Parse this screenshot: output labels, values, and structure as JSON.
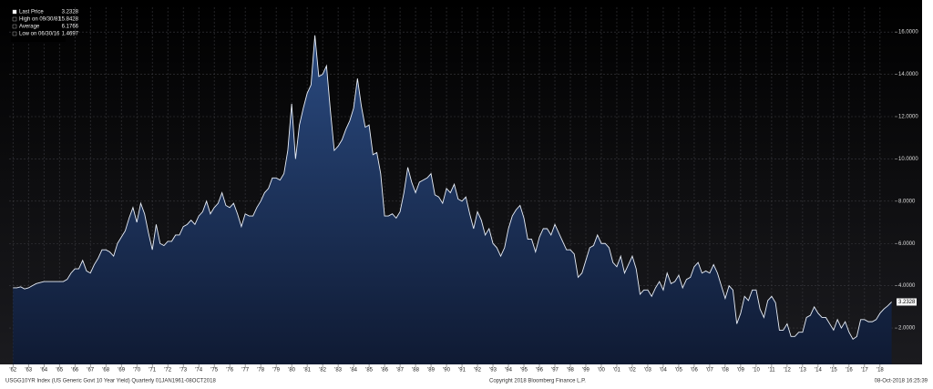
{
  "chart_data": {
    "type": "area",
    "legend": [
      {
        "label": "Last Price",
        "value": "3.2328"
      },
      {
        "label": "High on 09/30/81",
        "value": "15.8428"
      },
      {
        "label": "Average",
        "value": "6.1766"
      },
      {
        "label": "Low on 06/30/16",
        "value": "1.4697"
      }
    ],
    "footer_left": "USGG10YR Index (US Generic Govt 10 Year Yield) Quarterly 01JAN1961-08OCT2018",
    "footer_center": "Copyright 2018 Bloomberg Finance L.P.",
    "footer_right": "08-Oct-2018 16:25:39",
    "color": "#1c3563",
    "line_color": "#e8eef8",
    "grid": true,
    "xlim": [
      1961.75,
      2018.95
    ],
    "ylim": [
      0.28,
      17.17
    ],
    "yticks": [
      {
        "value": 2,
        "label": "2.0000"
      },
      {
        "value": 4,
        "label": "4.0000"
      },
      {
        "value": 6,
        "label": "6.0000"
      },
      {
        "value": 8,
        "label": "8.0000"
      },
      {
        "value": 10,
        "label": "10.0000"
      },
      {
        "value": 12,
        "label": "12.0000"
      },
      {
        "value": 14,
        "label": "14.0000"
      },
      {
        "value": 16,
        "label": "16.0000"
      }
    ],
    "xticks": [
      {
        "value": 1962,
        "label": "'62"
      },
      {
        "value": 1963,
        "label": "'63"
      },
      {
        "value": 1964,
        "label": "'64"
      },
      {
        "value": 1965,
        "label": "'65"
      },
      {
        "value": 1966,
        "label": "'66"
      },
      {
        "value": 1967,
        "label": "'67"
      },
      {
        "value": 1968,
        "label": "'68"
      },
      {
        "value": 1969,
        "label": "'69"
      },
      {
        "value": 1970,
        "label": "'70"
      },
      {
        "value": 1971,
        "label": "'71"
      },
      {
        "value": 1972,
        "label": "'72"
      },
      {
        "value": 1973,
        "label": "'73"
      },
      {
        "value": 1974,
        "label": "'74"
      },
      {
        "value": 1975,
        "label": "'75"
      },
      {
        "value": 1976,
        "label": "'76"
      },
      {
        "value": 1977,
        "label": "'77"
      },
      {
        "value": 1978,
        "label": "'78"
      },
      {
        "value": 1979,
        "label": "'79"
      },
      {
        "value": 1980,
        "label": "'80"
      },
      {
        "value": 1981,
        "label": "'81"
      },
      {
        "value": 1982,
        "label": "'82"
      },
      {
        "value": 1983,
        "label": "'83"
      },
      {
        "value": 1984,
        "label": "'84"
      },
      {
        "value": 1985,
        "label": "'85"
      },
      {
        "value": 1986,
        "label": "'86"
      },
      {
        "value": 1987,
        "label": "'87"
      },
      {
        "value": 1988,
        "label": "'88"
      },
      {
        "value": 1989,
        "label": "'89"
      },
      {
        "value": 1990,
        "label": "'90"
      },
      {
        "value": 1991,
        "label": "'91"
      },
      {
        "value": 1992,
        "label": "'92"
      },
      {
        "value": 1993,
        "label": "'93"
      },
      {
        "value": 1994,
        "label": "'94"
      },
      {
        "value": 1995,
        "label": "'95"
      },
      {
        "value": 1996,
        "label": "'96"
      },
      {
        "value": 1997,
        "label": "'97"
      },
      {
        "value": 1998,
        "label": "'98"
      },
      {
        "value": 1999,
        "label": "'99"
      },
      {
        "value": 2000,
        "label": "'00"
      },
      {
        "value": 2001,
        "label": "'01"
      },
      {
        "value": 2002,
        "label": "'02"
      },
      {
        "value": 2003,
        "label": "'03"
      },
      {
        "value": 2004,
        "label": "'04"
      },
      {
        "value": 2005,
        "label": "'05"
      },
      {
        "value": 2006,
        "label": "'06"
      },
      {
        "value": 2007,
        "label": "'07"
      },
      {
        "value": 2008,
        "label": "'08"
      },
      {
        "value": 2009,
        "label": "'09"
      },
      {
        "value": 2010,
        "label": "'10"
      },
      {
        "value": 2011,
        "label": "'11"
      },
      {
        "value": 2012,
        "label": "'12"
      },
      {
        "value": 2013,
        "label": "'13"
      },
      {
        "value": 2014,
        "label": "'14"
      },
      {
        "value": 2015,
        "label": "'15"
      },
      {
        "value": 2016,
        "label": "'16"
      },
      {
        "value": 2017,
        "label": "'17"
      },
      {
        "value": 2018,
        "label": "'18"
      }
    ],
    "x": [
      1962,
      1962.25,
      1962.5,
      1962.75,
      1963,
      1963.25,
      1963.5,
      1963.75,
      1964,
      1964.25,
      1964.5,
      1964.75,
      1965,
      1965.25,
      1965.5,
      1965.75,
      1966,
      1966.25,
      1966.5,
      1966.75,
      1967,
      1967.25,
      1967.5,
      1967.75,
      1968,
      1968.25,
      1968.5,
      1968.75,
      1969,
      1969.25,
      1969.5,
      1969.75,
      1970,
      1970.25,
      1970.5,
      1970.75,
      1971,
      1971.25,
      1971.5,
      1971.75,
      1972,
      1972.25,
      1972.5,
      1972.75,
      1973,
      1973.25,
      1973.5,
      1973.75,
      1974,
      1974.25,
      1974.5,
      1974.75,
      1975,
      1975.25,
      1975.5,
      1975.75,
      1976,
      1976.25,
      1976.5,
      1976.75,
      1977,
      1977.25,
      1977.5,
      1977.75,
      1978,
      1978.25,
      1978.5,
      1978.75,
      1979,
      1979.25,
      1979.5,
      1979.75,
      1980,
      1980.25,
      1980.5,
      1980.75,
      1981,
      1981.25,
      1981.5,
      1981.75,
      1982,
      1982.25,
      1982.5,
      1982.75,
      1983,
      1983.25,
      1983.5,
      1983.75,
      1984,
      1984.25,
      1984.5,
      1984.75,
      1985,
      1985.25,
      1985.5,
      1985.75,
      1986,
      1986.25,
      1986.5,
      1986.75,
      1987,
      1987.25,
      1987.5,
      1987.75,
      1988,
      1988.25,
      1988.5,
      1988.75,
      1989,
      1989.25,
      1989.5,
      1989.75,
      1990,
      1990.25,
      1990.5,
      1990.75,
      1991,
      1991.25,
      1991.5,
      1991.75,
      1992,
      1992.25,
      1992.5,
      1992.75,
      1993,
      1993.25,
      1993.5,
      1993.75,
      1994,
      1994.25,
      1994.5,
      1994.75,
      1995,
      1995.25,
      1995.5,
      1995.75,
      1996,
      1996.25,
      1996.5,
      1996.75,
      1997,
      1997.25,
      1997.5,
      1997.75,
      1998,
      1998.25,
      1998.5,
      1998.75,
      1999,
      1999.25,
      1999.5,
      1999.75,
      2000,
      2000.25,
      2000.5,
      2000.75,
      2001,
      2001.25,
      2001.5,
      2001.75,
      2002,
      2002.25,
      2002.5,
      2002.75,
      2003,
      2003.25,
      2003.5,
      2003.75,
      2004,
      2004.25,
      2004.5,
      2004.75,
      2005,
      2005.25,
      2005.5,
      2005.75,
      2006,
      2006.25,
      2006.5,
      2006.75,
      2007,
      2007.25,
      2007.5,
      2007.75,
      2008,
      2008.25,
      2008.5,
      2008.75,
      2009,
      2009.25,
      2009.5,
      2009.75,
      2010,
      2010.25,
      2010.5,
      2010.75,
      2011,
      2011.25,
      2011.5,
      2011.75,
      2012,
      2012.25,
      2012.5,
      2012.75,
      2013,
      2013.25,
      2013.5,
      2013.75,
      2014,
      2014.25,
      2014.5,
      2014.75,
      2015,
      2015.25,
      2015.5,
      2015.75,
      2016,
      2016.25,
      2016.5,
      2016.75,
      2017,
      2017.25,
      2017.5,
      2017.75,
      2018,
      2018.25,
      2018.5,
      2018.75
    ],
    "values": [
      3.9,
      3.9,
      3.95,
      3.85,
      3.9,
      4.0,
      4.1,
      4.15,
      4.2,
      4.2,
      4.2,
      4.2,
      4.2,
      4.2,
      4.3,
      4.6,
      4.8,
      4.8,
      5.2,
      4.7,
      4.6,
      5.0,
      5.3,
      5.7,
      5.7,
      5.6,
      5.4,
      6.0,
      6.3,
      6.6,
      7.2,
      7.7,
      7.0,
      7.9,
      7.4,
      6.5,
      5.7,
      6.9,
      6.0,
      5.9,
      6.1,
      6.1,
      6.4,
      6.4,
      6.8,
      6.9,
      7.1,
      6.9,
      7.3,
      7.5,
      8.0,
      7.4,
      7.7,
      7.9,
      8.4,
      7.8,
      7.7,
      7.9,
      7.4,
      6.8,
      7.4,
      7.3,
      7.3,
      7.7,
      8.0,
      8.4,
      8.6,
      9.1,
      9.1,
      9.0,
      9.3,
      10.4,
      12.6,
      10.0,
      11.6,
      12.4,
      13.1,
      13.5,
      15.8428,
      13.9,
      14.0,
      14.4,
      12.3,
      10.4,
      10.6,
      10.9,
      11.4,
      11.8,
      12.4,
      13.8,
      12.5,
      11.5,
      11.6,
      10.2,
      10.3,
      9.3,
      7.3,
      7.3,
      7.4,
      7.2,
      7.5,
      8.4,
      9.6,
      8.9,
      8.4,
      8.9,
      9.0,
      9.1,
      9.3,
      8.3,
      8.2,
      7.9,
      8.6,
      8.4,
      8.8,
      8.1,
      8.0,
      8.2,
      7.4,
      6.7,
      7.5,
      7.1,
      6.4,
      6.7,
      6.0,
      5.8,
      5.4,
      5.8,
      6.7,
      7.3,
      7.6,
      7.8,
      7.2,
      6.2,
      6.2,
      5.6,
      6.3,
      6.7,
      6.7,
      6.4,
      6.9,
      6.5,
      6.1,
      5.7,
      5.7,
      5.5,
      4.4,
      4.6,
      5.2,
      5.8,
      5.9,
      6.4,
      6.0,
      6.0,
      5.8,
      5.1,
      4.9,
      5.4,
      4.6,
      5.0,
      5.4,
      4.8,
      3.6,
      3.8,
      3.8,
      3.5,
      3.9,
      4.2,
      3.8,
      4.6,
      4.1,
      4.2,
      4.5,
      3.9,
      4.3,
      4.4,
      4.9,
      5.1,
      4.6,
      4.7,
      4.6,
      5.0,
      4.6,
      4.0,
      3.4,
      4.0,
      3.8,
      2.2,
      2.7,
      3.5,
      3.3,
      3.8,
      3.8,
      2.9,
      2.5,
      3.3,
      3.5,
      3.2,
      1.9,
      1.9,
      2.2,
      1.6,
      1.6,
      1.8,
      1.8,
      2.5,
      2.6,
      3.0,
      2.7,
      2.5,
      2.5,
      2.2,
      1.9,
      2.4,
      2.0,
      2.3,
      1.8,
      1.4697,
      1.6,
      2.4,
      2.4,
      2.3,
      2.3,
      2.4,
      2.7,
      2.9,
      3.05,
      3.2328
    ]
  }
}
